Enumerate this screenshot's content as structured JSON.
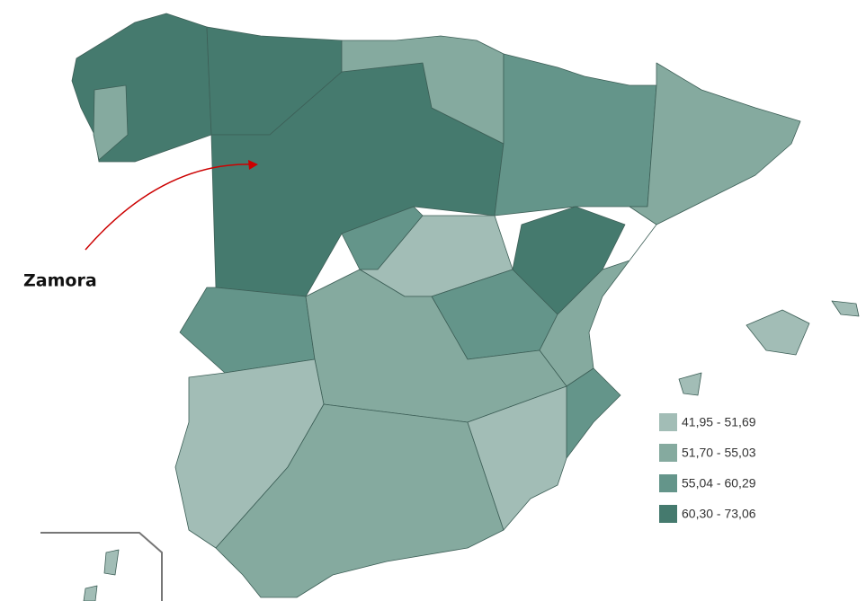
{
  "annotation": "Zamora",
  "legend": [
    {
      "label": "41,95 - 51,69",
      "color": "#a2bdb6"
    },
    {
      "label": "51,70 - 55,03",
      "color": "#85aa9f"
    },
    {
      "label": "55,04 - 60,29",
      "color": "#64958a"
    },
    {
      "label": "60,30 - 73,06",
      "color": "#457a6e"
    }
  ]
}
